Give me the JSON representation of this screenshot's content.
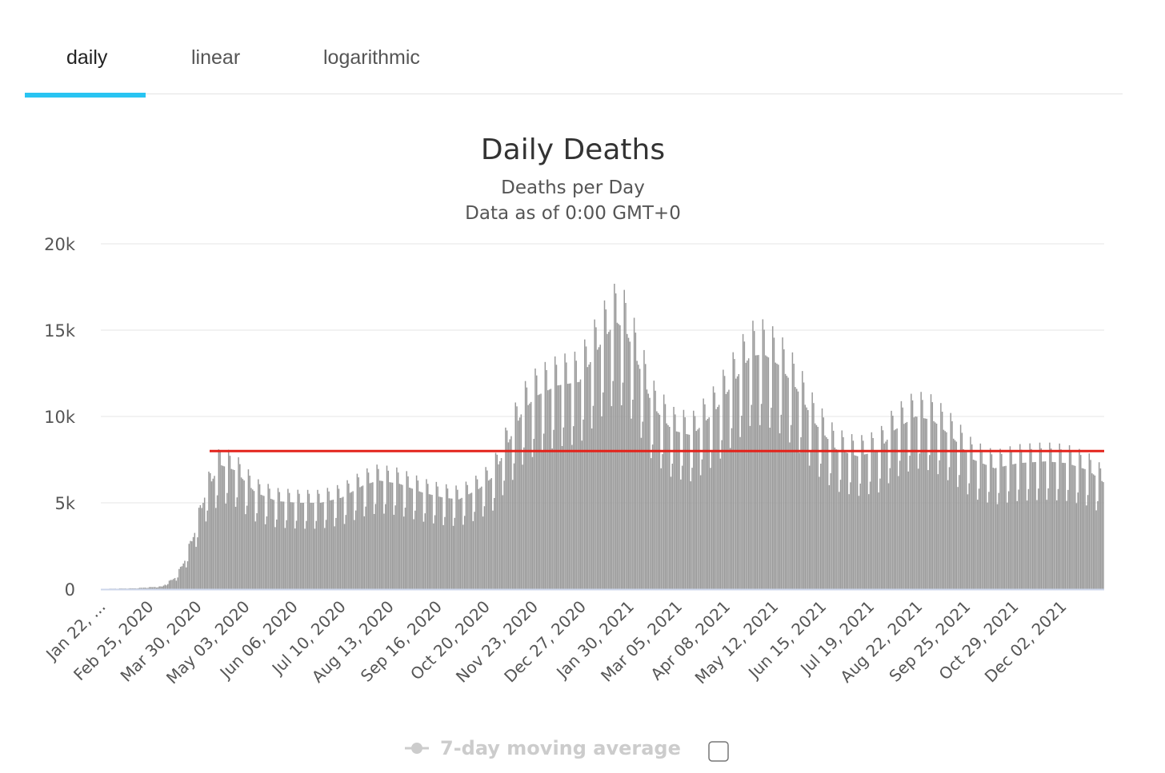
{
  "tabs": [
    {
      "label": "daily",
      "active": true
    },
    {
      "label": "linear",
      "active": false
    },
    {
      "label": "logarithmic",
      "active": false
    }
  ],
  "colors": {
    "accent": "#29c4f2",
    "bar": "#999999",
    "reference_line": "#e3231b",
    "grid": "#e6e6e6",
    "axis": "#ccd6eb",
    "legend_inactive": "#cccccc"
  },
  "chart_data": {
    "type": "bar",
    "title": "Daily Deaths",
    "subtitle_lines": [
      "Deaths per Day",
      "Data as of 0:00 GMT+0"
    ],
    "xlabel": "",
    "ylabel": "",
    "ylim": [
      0,
      20000
    ],
    "yticks": [
      {
        "value": 0,
        "label": "0"
      },
      {
        "value": 5000,
        "label": "5k"
      },
      {
        "value": 10000,
        "label": "10k"
      },
      {
        "value": 15000,
        "label": "15k"
      },
      {
        "value": 20000,
        "label": "20k"
      }
    ],
    "x_start": "2020-01-22",
    "x_end": "2021-12-31",
    "x_tick_labels": [
      {
        "date": "2020-01-22",
        "label": "Jan 22, ..."
      },
      {
        "date": "2020-02-25",
        "label": "Feb 25, 2020"
      },
      {
        "date": "2020-03-30",
        "label": "Mar 30, 2020"
      },
      {
        "date": "2020-05-03",
        "label": "May 03, 2020"
      },
      {
        "date": "2020-06-06",
        "label": "Jun 06, 2020"
      },
      {
        "date": "2020-07-10",
        "label": "Jul 10, 2020"
      },
      {
        "date": "2020-08-13",
        "label": "Aug 13, 2020"
      },
      {
        "date": "2020-09-16",
        "label": "Sep 16, 2020"
      },
      {
        "date": "2020-10-20",
        "label": "Oct 20, 2020"
      },
      {
        "date": "2020-11-23",
        "label": "Nov 23, 2020"
      },
      {
        "date": "2020-12-27",
        "label": "Dec 27, 2020"
      },
      {
        "date": "2021-01-30",
        "label": "Jan 30, 2021"
      },
      {
        "date": "2021-03-05",
        "label": "Mar 05, 2021"
      },
      {
        "date": "2021-04-08",
        "label": "Apr 08, 2021"
      },
      {
        "date": "2021-05-12",
        "label": "May 12, 2021"
      },
      {
        "date": "2021-06-15",
        "label": "Jun 15, 2021"
      },
      {
        "date": "2021-07-19",
        "label": "Jul 19, 2021"
      },
      {
        "date": "2021-08-22",
        "label": "Aug 22, 2021"
      },
      {
        "date": "2021-09-25",
        "label": "Sep 25, 2021"
      },
      {
        "date": "2021-10-29",
        "label": "Oct 29, 2021"
      },
      {
        "date": "2021-12-02",
        "label": "Dec 02, 2021"
      }
    ],
    "trend_points": [
      {
        "date": "2020-01-22",
        "value": 20
      },
      {
        "date": "2020-02-15",
        "value": 50
      },
      {
        "date": "2020-03-05",
        "value": 150
      },
      {
        "date": "2020-03-15",
        "value": 700
      },
      {
        "date": "2020-03-22",
        "value": 1800
      },
      {
        "date": "2020-03-29",
        "value": 3500
      },
      {
        "date": "2020-04-05",
        "value": 5600
      },
      {
        "date": "2020-04-15",
        "value": 7200
      },
      {
        "date": "2020-04-25",
        "value": 6900
      },
      {
        "date": "2020-05-10",
        "value": 5600
      },
      {
        "date": "2020-05-25",
        "value": 5100
      },
      {
        "date": "2020-06-10",
        "value": 5000
      },
      {
        "date": "2020-06-25",
        "value": 5000
      },
      {
        "date": "2020-07-10",
        "value": 5300
      },
      {
        "date": "2020-07-25",
        "value": 6000
      },
      {
        "date": "2020-08-05",
        "value": 6300
      },
      {
        "date": "2020-08-20",
        "value": 6100
      },
      {
        "date": "2020-09-05",
        "value": 5600
      },
      {
        "date": "2020-09-20",
        "value": 5300
      },
      {
        "date": "2020-10-01",
        "value": 5200
      },
      {
        "date": "2020-10-15",
        "value": 5800
      },
      {
        "date": "2020-10-25",
        "value": 6500
      },
      {
        "date": "2020-11-05",
        "value": 8500
      },
      {
        "date": "2020-11-15",
        "value": 10300
      },
      {
        "date": "2020-11-25",
        "value": 11200
      },
      {
        "date": "2020-12-10",
        "value": 11800
      },
      {
        "date": "2020-12-25",
        "value": 12000
      },
      {
        "date": "2021-01-10",
        "value": 14300
      },
      {
        "date": "2021-01-20",
        "value": 15500
      },
      {
        "date": "2021-01-27",
        "value": 15000
      },
      {
        "date": "2021-02-05",
        "value": 13000
      },
      {
        "date": "2021-02-15",
        "value": 10600
      },
      {
        "date": "2021-03-01",
        "value": 9200
      },
      {
        "date": "2021-03-15",
        "value": 8900
      },
      {
        "date": "2021-03-31",
        "value": 10300
      },
      {
        "date": "2021-04-12",
        "value": 11800
      },
      {
        "date": "2021-04-25",
        "value": 13500
      },
      {
        "date": "2021-05-05",
        "value": 13600
      },
      {
        "date": "2021-05-15",
        "value": 13000
      },
      {
        "date": "2021-05-28",
        "value": 11600
      },
      {
        "date": "2021-06-10",
        "value": 9600
      },
      {
        "date": "2021-06-25",
        "value": 8100
      },
      {
        "date": "2021-07-10",
        "value": 7700
      },
      {
        "date": "2021-07-25",
        "value": 8000
      },
      {
        "date": "2021-08-05",
        "value": 9200
      },
      {
        "date": "2021-08-20",
        "value": 10000
      },
      {
        "date": "2021-09-01",
        "value": 9800
      },
      {
        "date": "2021-09-15",
        "value": 8800
      },
      {
        "date": "2021-09-30",
        "value": 7500
      },
      {
        "date": "2021-10-15",
        "value": 7000
      },
      {
        "date": "2021-11-01",
        "value": 7300
      },
      {
        "date": "2021-11-20",
        "value": 7400
      },
      {
        "date": "2021-12-05",
        "value": 7300
      },
      {
        "date": "2021-12-20",
        "value": 6900
      },
      {
        "date": "2021-12-31",
        "value": 6200
      }
    ],
    "weekly_dip_fraction": 0.3,
    "reference_line": {
      "value": 8000,
      "from_date": "2020-04-08",
      "to_date": "2021-12-31"
    },
    "grid": true,
    "legend": {
      "placement": "bottom-center",
      "items": [
        {
          "label": "7-day moving average",
          "enabled": false
        }
      ]
    }
  }
}
